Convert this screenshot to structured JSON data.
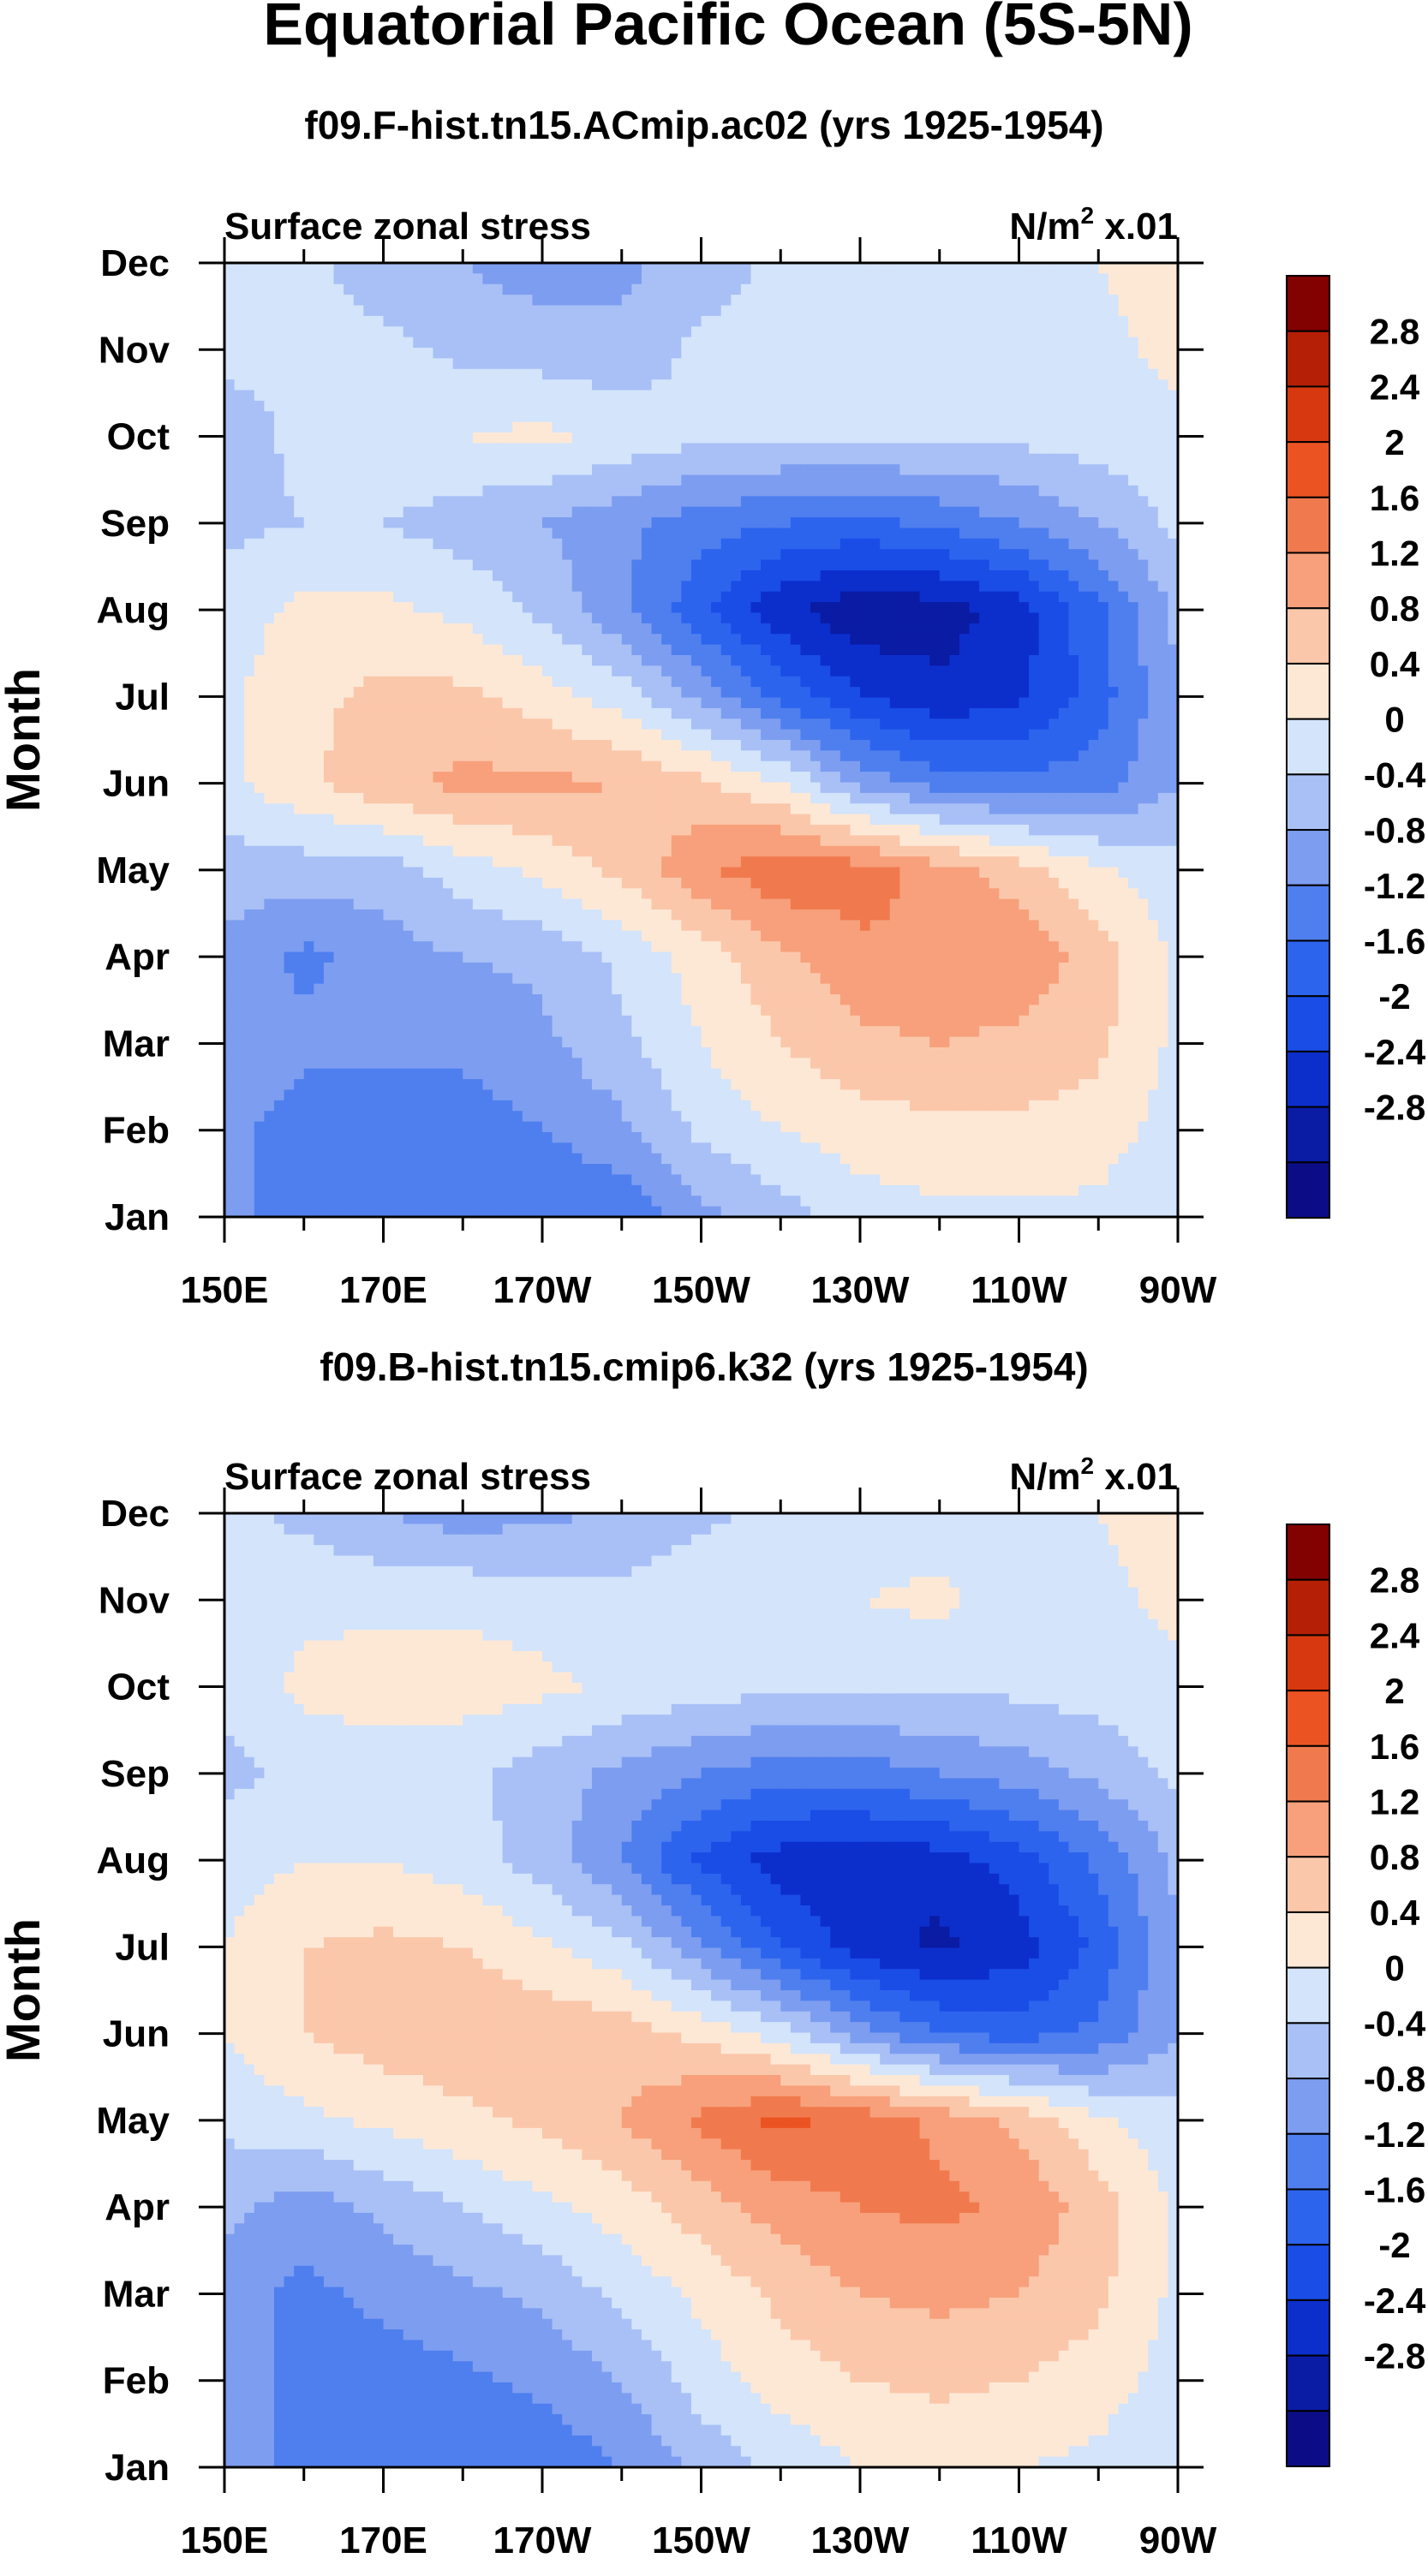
{
  "title": "Equatorial Pacific Ocean (5S-5N)",
  "colors": {
    "-3.2": "#0c0d86",
    "-2.8": "#0a1ba4",
    "-2.4": "#0c2fcc",
    "-2.0": "#1a4de6",
    "-1.6": "#2d64ee",
    "-1.2": "#4f7fee",
    "-0.8": "#7d9df0",
    "-0.4": "#a8c0f6",
    "0": "#d3e4fb",
    "0.4": "#fde8d6",
    "0.8": "#fbc7aa",
    "1.2": "#f7a07b",
    "1.6": "#f07a4e",
    "2.0": "#ec5322",
    "2.4": "#d8380f",
    "2.8": "#b51f05",
    "3.2": "#820101"
  },
  "chart_data": [
    {
      "type": "heatmap",
      "title": "f09.F-hist.tn15.ACmip.ac02 (yrs 1925-1954)",
      "left_label": "Surface zonal stress",
      "right_label": "N/m",
      "right_label_sup": "2",
      "right_label_suffix": " x.01",
      "ylabel": "Month",
      "xticklabels": [
        "150E",
        "170E",
        "170W",
        "150W",
        "130W",
        "110W",
        "90W"
      ],
      "yticklabels": [
        "Jan",
        "Feb",
        "Mar",
        "Apr",
        "May",
        "Jun",
        "Jul",
        "Aug",
        "Sep",
        "Oct",
        "Nov",
        "Dec"
      ],
      "x_range_deg_east": [
        150,
        270
      ],
      "colorbar_levels": [
        "2.8",
        "2.4",
        "2",
        "1.6",
        "1.2",
        "0.8",
        "0.4",
        "0",
        "-0.4",
        "-0.8",
        "-1.2",
        "-1.6",
        "-2",
        "-2.4",
        "-2.8"
      ],
      "base": [
        [
          -0.7,
          -1.0,
          -1.0,
          -1.1,
          -1.2,
          -1.1,
          -0.5,
          -0.2,
          0.2,
          0.3,
          0.3,
          0.3,
          0.0
        ],
        [
          -0.7,
          -1.0,
          -1.0,
          -1.0,
          -0.8,
          -0.5,
          0.1,
          0.4,
          0.6,
          0.7,
          0.7,
          0.6,
          0.2
        ],
        [
          -0.5,
          -0.7,
          -0.7,
          -0.7,
          -0.5,
          -0.1,
          0.4,
          0.8,
          1.1,
          1.2,
          1.1,
          0.9,
          0.3
        ],
        [
          -0.5,
          -0.9,
          -0.6,
          -0.4,
          -0.3,
          0.1,
          0.6,
          1.1,
          1.5,
          1.6,
          1.5,
          1.0,
          0.3
        ],
        [
          -0.2,
          -0.2,
          -0.2,
          0.2,
          0.5,
          0.9,
          1.5,
          1.9,
          1.8,
          1.4,
          1.0,
          0.5,
          0.1
        ],
        [
          0.3,
          0.7,
          1.1,
          1.3,
          1.3,
          1.2,
          0.9,
          0.4,
          -0.5,
          -1.0,
          -1.1,
          -1.0,
          -0.4
        ],
        [
          0.3,
          0.7,
          0.9,
          0.9,
          0.6,
          0.2,
          -0.5,
          -1.3,
          -2.0,
          -2.3,
          -2.1,
          -1.4,
          -0.4
        ],
        [
          0.2,
          0.5,
          0.5,
          0.3,
          -0.1,
          -0.7,
          -1.5,
          -2.3,
          -2.7,
          -2.6,
          -2.2,
          -1.3,
          -0.3
        ],
        [
          -0.1,
          0.0,
          0.0,
          -0.2,
          -0.4,
          -0.7,
          -1.0,
          -1.2,
          -1.3,
          -1.1,
          -0.8,
          -0.4,
          0.1
        ],
        [
          -0.2,
          0.1,
          0.3,
          0.4,
          0.5,
          0.3,
          0.1,
          0.1,
          0.1,
          0.1,
          0.1,
          0.2,
          0.3
        ],
        [
          0.1,
          0.1,
          0.1,
          -0.1,
          -0.2,
          -0.3,
          0.1,
          0.1,
          0.1,
          0.1,
          0.2,
          0.3,
          0.5
        ],
        [
          0.2,
          0.1,
          -0.2,
          -0.4,
          -0.6,
          -0.5,
          -0.2,
          0.1,
          0.1,
          0.2,
          0.3,
          0.4,
          0.6
        ]
      ]
    },
    {
      "type": "heatmap",
      "title": "f09.B-hist.tn15.cmip6.k32 (yrs 1925-1954)",
      "left_label": "Surface zonal stress",
      "right_label": "N/m",
      "right_label_sup": "2",
      "right_label_suffix": " x.01",
      "ylabel": "Month",
      "xticklabels": [
        "150E",
        "170E",
        "170W",
        "150W",
        "130W",
        "110W",
        "90W"
      ],
      "yticklabels": [
        "Jan",
        "Feb",
        "Mar",
        "Apr",
        "May",
        "Jun",
        "Jul",
        "Aug",
        "Sep",
        "Oct",
        "Nov",
        "Dec"
      ],
      "x_range_deg_east": [
        150,
        270
      ],
      "colorbar_levels": [
        "2.8",
        "2.4",
        "2",
        "1.6",
        "1.2",
        "0.8",
        "0.4",
        "0",
        "-0.4",
        "-0.8",
        "-1.2",
        "-1.6",
        "-2",
        "-2.4",
        "-2.8"
      ],
      "base": [
        [
          -0.6,
          -0.9,
          -1.1,
          -1.2,
          -1.1,
          -0.8,
          -0.3,
          0.1,
          0.4,
          0.5,
          0.4,
          0.3,
          0.0
        ],
        [
          -0.6,
          -0.9,
          -1.0,
          -0.9,
          -0.7,
          -0.4,
          0.2,
          0.6,
          0.8,
          0.9,
          0.8,
          0.6,
          0.2
        ],
        [
          -0.6,
          -0.9,
          -0.7,
          -0.5,
          -0.3,
          0.1,
          0.5,
          0.9,
          1.2,
          1.3,
          1.2,
          0.9,
          0.3
        ],
        [
          -0.3,
          -0.6,
          -0.3,
          0.0,
          0.3,
          0.6,
          1.0,
          1.4,
          1.6,
          1.7,
          1.5,
          1.0,
          0.3
        ],
        [
          0.1,
          0.3,
          0.5,
          0.7,
          0.9,
          1.2,
          1.7,
          2.1,
          1.9,
          1.5,
          1.1,
          0.5,
          0.1
        ],
        [
          0.4,
          0.8,
          1.0,
          1.1,
          1.1,
          1.0,
          0.7,
          0.2,
          -0.6,
          -1.2,
          -1.4,
          -1.1,
          -0.4
        ],
        [
          0.4,
          0.8,
          0.9,
          0.8,
          0.5,
          0.1,
          -0.7,
          -1.6,
          -2.2,
          -2.5,
          -2.2,
          -1.5,
          -0.4
        ],
        [
          0.2,
          0.4,
          0.4,
          0.2,
          -0.2,
          -0.8,
          -1.7,
          -2.2,
          -2.3,
          -2.2,
          -1.8,
          -1.1,
          -0.3
        ],
        [
          -0.1,
          0.1,
          0.2,
          0.1,
          -0.2,
          -0.5,
          -0.8,
          -1.0,
          -1.0,
          -0.8,
          -0.6,
          -0.3,
          0.1
        ],
        [
          0.1,
          0.5,
          0.6,
          0.6,
          0.5,
          0.3,
          0.2,
          0.1,
          0.1,
          0.1,
          0.1,
          0.2,
          0.3
        ],
        [
          0.1,
          0.3,
          0.3,
          0.3,
          0.2,
          0.1,
          0.3,
          0.3,
          0.4,
          0.5,
          0.2,
          0.3,
          0.5
        ],
        [
          0.1,
          -0.1,
          -0.4,
          -0.6,
          -0.5,
          -0.3,
          -0.1,
          0.1,
          0.1,
          0.2,
          0.3,
          0.4,
          0.6
        ]
      ]
    }
  ]
}
